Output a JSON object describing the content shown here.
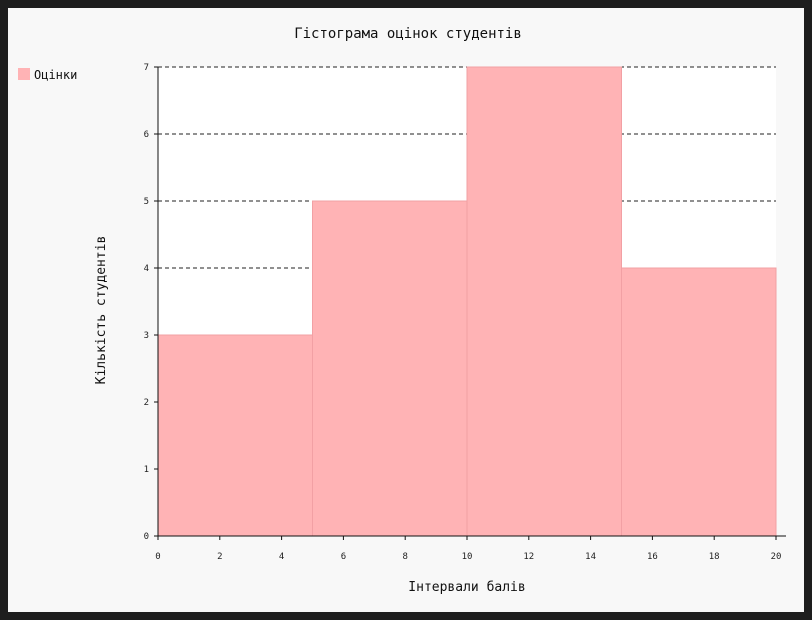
{
  "chart_data": {
    "type": "bar",
    "histogram": true,
    "title": "Гістограма оцінок студентів",
    "xlabel": "Інтервали балів",
    "ylabel": "Кількість студентів",
    "bins": [
      {
        "from": 0,
        "to": 5,
        "value": 3
      },
      {
        "from": 5,
        "to": 10,
        "value": 5
      },
      {
        "from": 10,
        "to": 15,
        "value": 7
      },
      {
        "from": 15,
        "to": 20,
        "value": 4
      }
    ],
    "xlim": [
      0,
      20
    ],
    "ylim": [
      0,
      7
    ],
    "xticks": [
      0,
      2,
      4,
      6,
      8,
      10,
      12,
      14,
      16,
      18,
      20
    ],
    "yticks": [
      0,
      1,
      2,
      3,
      4,
      5,
      6,
      7
    ],
    "grid": {
      "horizontal": true,
      "style": "dashed"
    },
    "legend": {
      "position": "top-left",
      "entries": [
        {
          "label": "Оцінки",
          "color": "#ffb3b5"
        }
      ]
    },
    "colors": {
      "bar": "#ffb3b5",
      "bar_edge": "#f2a0a4",
      "plot_bg": "#ffffff",
      "frame_bg": "#f8f8f8"
    }
  }
}
